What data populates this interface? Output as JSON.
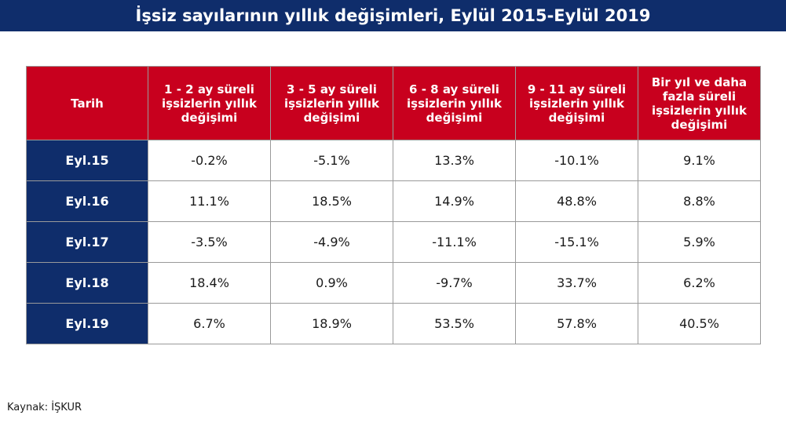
{
  "title": "İşsiz sayılarının yıllık değişimleri, Eylül 2015-Eylül 2019",
  "table": {
    "headers": [
      "Tarih",
      "1 - 2 ay süreli işsizlerin yıllık değişimi",
      "3 - 5 ay süreli işsizlerin yıllık değişimi",
      "6 - 8 ay süreli işsizlerin yıllık değişimi",
      "9 - 11 ay süreli işsizlerin yıllık değişimi",
      "Bir yıl ve daha fazla süreli işsizlerin yıllık değişimi"
    ],
    "rows": [
      [
        "Eyl.15",
        "-0.2%",
        "-5.1%",
        "13.3%",
        "-10.1%",
        "9.1%"
      ],
      [
        "Eyl.16",
        "11.1%",
        "18.5%",
        "14.9%",
        "48.8%",
        "8.8%"
      ],
      [
        "Eyl.17",
        "-3.5%",
        "-4.9%",
        "-11.1%",
        "-15.1%",
        "5.9%"
      ],
      [
        "Eyl.18",
        "18.4%",
        "0.9%",
        "-9.7%",
        "33.7%",
        "6.2%"
      ],
      [
        "Eyl.19",
        "6.7%",
        "18.9%",
        "53.5%",
        "57.8%",
        "40.5%"
      ]
    ]
  },
  "source": "Kaynak: İŞKUR",
  "colors": {
    "title_bg": "#0f2d6b",
    "header_bg": "#c8001e",
    "row_label_bg": "#0f2d6b"
  }
}
